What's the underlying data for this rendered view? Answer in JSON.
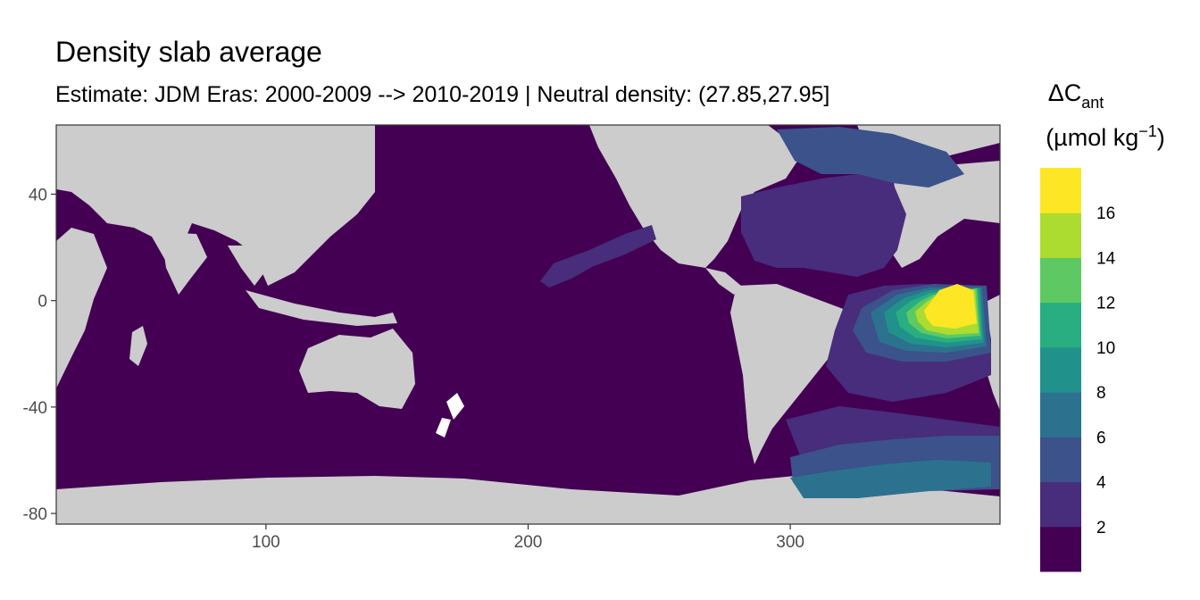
{
  "title": "Density slab average",
  "subtitle": "Estimate: JDM Eras: 2000-2009 --> 2010-2019 | Neutral density: (27.85,27.95]",
  "legend": {
    "title_line1_main": "ΔC",
    "title_line1_sub": "ant",
    "title_line2_main": "(µmol kg",
    "title_line2_sup": "−1",
    "title_line2_end": ")",
    "bins": [
      "#440154",
      "#472d7b",
      "#3b528b",
      "#2c728e",
      "#21918c",
      "#28ae80",
      "#5ec962",
      "#addc30",
      "#fde725"
    ],
    "labels": [
      "2",
      "4",
      "6",
      "8",
      "10",
      "12",
      "14",
      "16"
    ]
  },
  "colors": {
    "land": "#cccccc",
    "nodata": "#ffffff",
    "ocean_base": "#440154",
    "level2": "#472d7b",
    "level3": "#3b528b",
    "level4": "#2c728e",
    "level5": "#21918c",
    "level6": "#28ae80",
    "level7": "#5ec962",
    "level8": "#addc30",
    "level9": "#fde725"
  },
  "chart_data": {
    "type": "heatmap",
    "title": "Density slab average",
    "subtitle": "Estimate: JDM Eras: 2000-2009 --> 2010-2019 | Neutral density: (27.85,27.95]",
    "x_ticks": [
      100,
      200,
      300
    ],
    "y_ticks": [
      40,
      0,
      -40,
      -80
    ],
    "xlim": [
      20,
      380
    ],
    "ylim": [
      -84,
      66
    ],
    "legend_breaks": [
      2,
      4,
      6,
      8,
      10,
      12,
      14,
      16
    ],
    "legend_placement": "right",
    "colorscale": "viridis"
  }
}
